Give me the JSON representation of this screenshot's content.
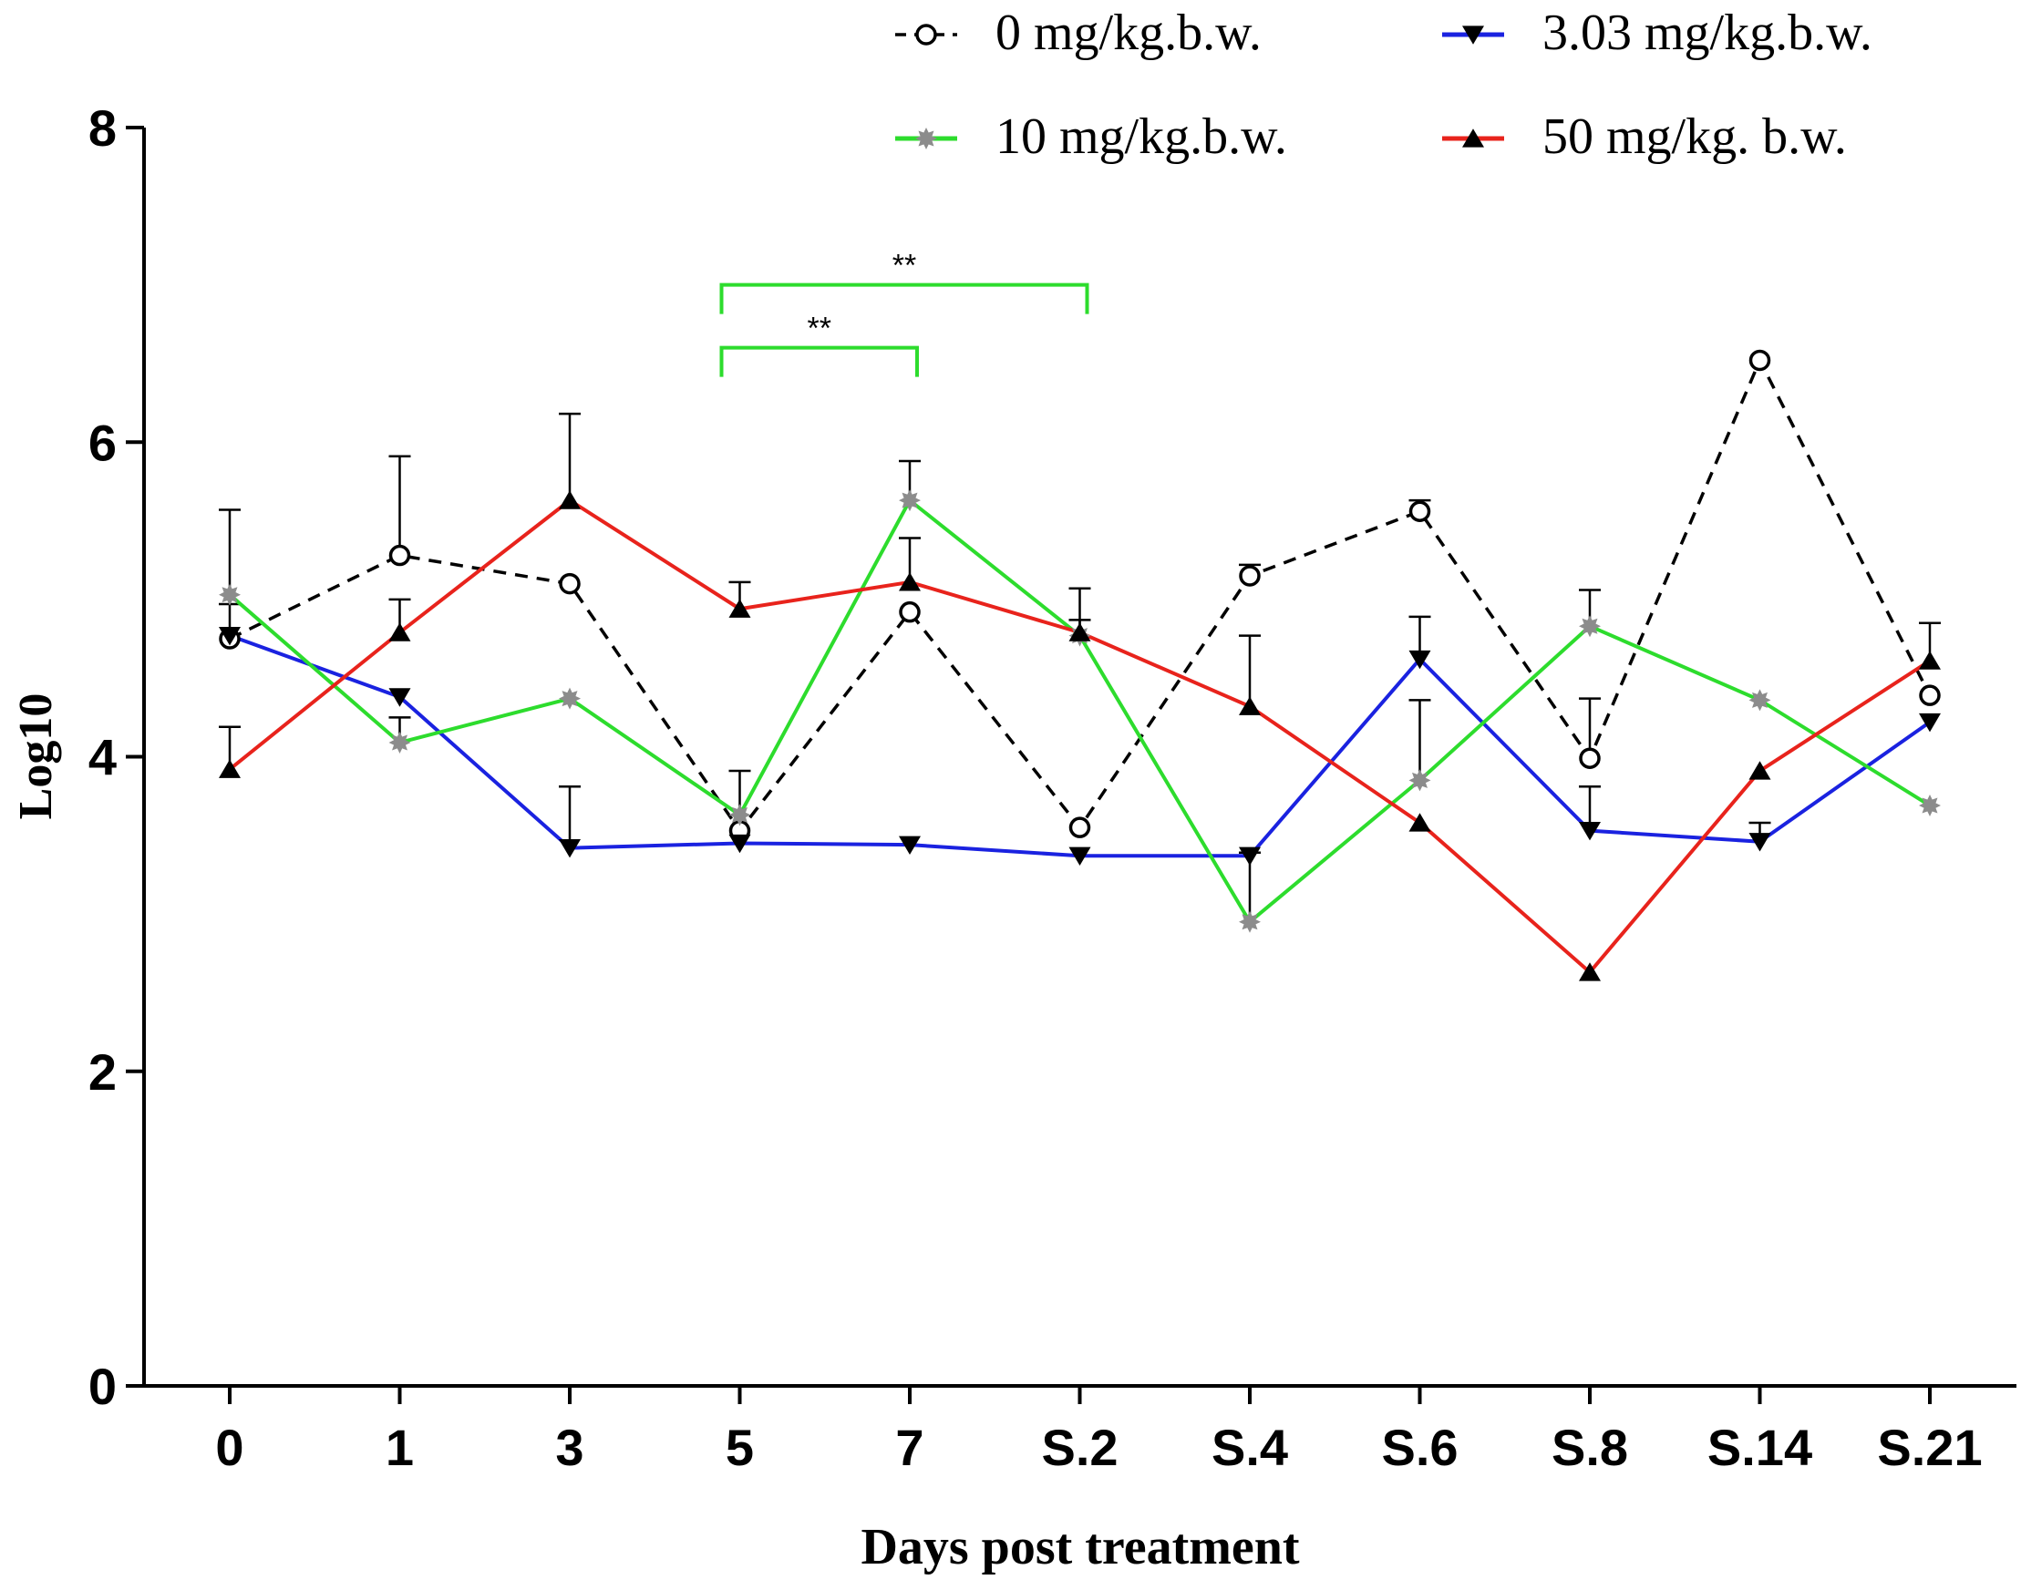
{
  "chart_data": {
    "type": "line",
    "title": "",
    "xlabel": "Days post treatment",
    "ylabel": "Log10",
    "ylim": [
      0,
      8
    ],
    "yticks": [
      "0",
      "2",
      "4",
      "6",
      "8"
    ],
    "categories": [
      "0",
      "1",
      "3",
      "5",
      "7",
      "S.2",
      "S.4",
      "S.6",
      "S.8",
      "S.14",
      "S.21"
    ],
    "grid": false,
    "legend_position": "top-right",
    "series": [
      {
        "name": "0 mg/kg.b.w.",
        "color": "#000000",
        "dashed": true,
        "marker": "open-circle",
        "values": [
          4.75,
          5.28,
          5.1,
          3.53,
          4.92,
          3.55,
          5.15,
          5.56,
          3.99,
          6.52,
          4.39
        ],
        "errors": [
          0,
          0.63,
          0,
          0,
          0,
          0,
          0.07,
          0.07,
          0.38,
          0,
          0
        ]
      },
      {
        "name": "3.03 mg/kg.b.w.",
        "color": "#1a22e0",
        "dashed": false,
        "marker": "triangle-down",
        "values": [
          4.77,
          4.38,
          3.42,
          3.45,
          3.44,
          3.37,
          3.37,
          4.62,
          3.53,
          3.46,
          4.22
        ],
        "errors": [
          0.2,
          0,
          0.39,
          0,
          0,
          0,
          0,
          0.27,
          0.28,
          0.12,
          0
        ]
      },
      {
        "name": "10 mg/kg.b.w.",
        "color": "#2ddc2d",
        "dashed": false,
        "marker": "star",
        "values": [
          5.03,
          4.09,
          4.37,
          3.63,
          5.63,
          4.77,
          2.95,
          3.85,
          4.83,
          4.36,
          3.69
        ],
        "errors": [
          0.54,
          0.16,
          0,
          0.28,
          0.25,
          0.3,
          0.44,
          0.51,
          0.23,
          0,
          0
        ]
      },
      {
        "name": "50 mg/kg. b.w.",
        "color": "#e8231c",
        "dashed": false,
        "marker": "triangle-up",
        "values": [
          3.92,
          4.79,
          5.63,
          4.94,
          5.11,
          4.79,
          4.32,
          3.58,
          2.63,
          3.91,
          4.61
        ],
        "errors": [
          0.27,
          0.21,
          0.55,
          0.17,
          0.28,
          0.08,
          0.45,
          0,
          0,
          0,
          0.24
        ]
      }
    ],
    "annotations": [
      {
        "label": "**",
        "from_category": "5",
        "to_category": "S.2",
        "level": 7.0
      },
      {
        "label": "**",
        "from_category": "5",
        "to_category": "7",
        "level": 6.6
      }
    ]
  }
}
